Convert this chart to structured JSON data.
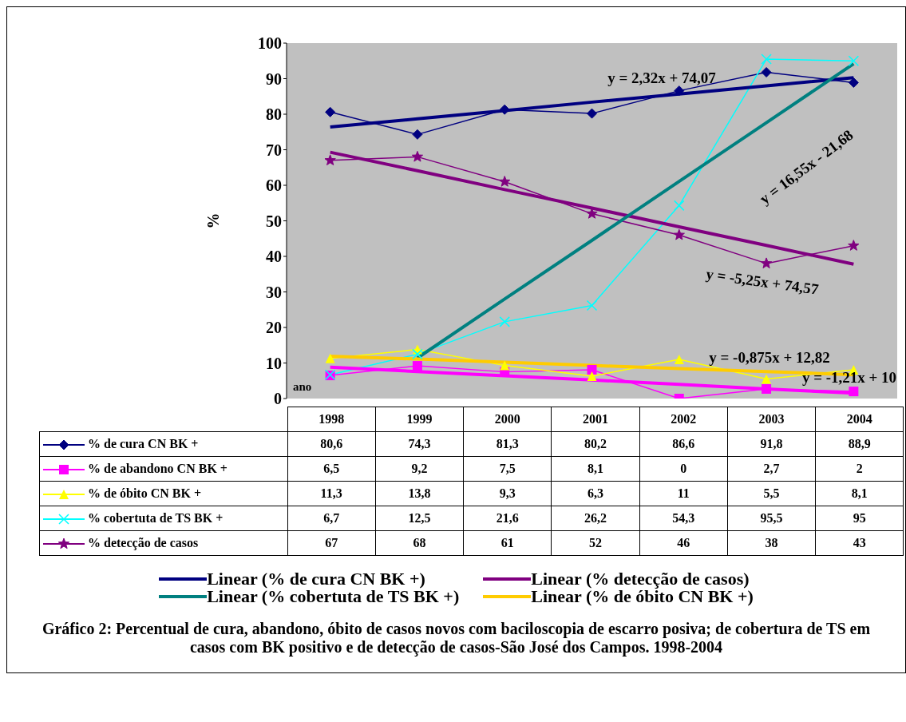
{
  "chart_data": {
    "type": "line",
    "title": "Gráfico 2: Percentual de cura, abandono, óbito de casos novos com baciloscopia de escarro posiva; de cobertura de TS em casos com BK positivo e de detecção de casos-São José dos Campos. 1998-2004",
    "xlabel": "ano",
    "ylabel": "%",
    "categories": [
      "1998",
      "1999",
      "2000",
      "2001",
      "2002",
      "2003",
      "2004"
    ],
    "ylim": [
      0,
      100
    ],
    "yticks": [
      0,
      10,
      20,
      30,
      40,
      50,
      60,
      70,
      80,
      90,
      100
    ],
    "legend": "bottom",
    "series": [
      {
        "name": "% de cura CN BK +",
        "color": "#000080",
        "marker": "diamond",
        "values": [
          80.6,
          74.3,
          81.3,
          80.2,
          86.6,
          91.8,
          88.9
        ],
        "value_labels": [
          "80,6",
          "74,3",
          "81,3",
          "80,2",
          "86,6",
          "91,8",
          "88,9"
        ]
      },
      {
        "name": "% de abandono CN BK +",
        "color": "#ff00ff",
        "marker": "square",
        "values": [
          6.5,
          9.2,
          7.5,
          8.1,
          0,
          2.7,
          2
        ],
        "value_labels": [
          "6,5",
          "9,2",
          "7,5",
          "8,1",
          "0",
          "2,7",
          "2"
        ]
      },
      {
        "name": "% de óbito CN BK +",
        "color": "#ffff00",
        "marker": "triangle",
        "values": [
          11.3,
          13.8,
          9.3,
          6.3,
          11,
          5.5,
          8.1
        ],
        "value_labels": [
          "11,3",
          "13,8",
          "9,3",
          "6,3",
          "11",
          "5,5",
          "8,1"
        ]
      },
      {
        "name": "% cobertuta de TS BK +",
        "color": "#00ffff",
        "marker": "cross",
        "values": [
          6.7,
          12.5,
          21.6,
          26.2,
          54.3,
          95.5,
          95
        ],
        "value_labels": [
          "6,7",
          "12,5",
          "21,6",
          "26,2",
          "54,3",
          "95,5",
          "95"
        ]
      },
      {
        "name": "% detecção de casos",
        "color": "#800080",
        "marker": "star",
        "values": [
          67,
          68,
          61,
          52,
          46,
          38,
          43
        ],
        "value_labels": [
          "67",
          "68",
          "61",
          "52",
          "46",
          "38",
          "43"
        ]
      },
      {
        "name": "Linear (% de cura CN BK +)",
        "color": "#000080",
        "marker": "none",
        "values": [
          76.4,
          78.7,
          81.0,
          83.4,
          85.7,
          88.0,
          90.3
        ]
      },
      {
        "name": "Linear (% detecção de casos)",
        "color": "#800080",
        "marker": "none",
        "values": [
          69.3,
          64.1,
          58.8,
          53.6,
          48.3,
          43.1,
          37.8
        ]
      },
      {
        "name": "Linear (% cobertuta de TS BK +)",
        "color": "#008080",
        "marker": "none",
        "values": [
          null,
          11.4,
          28.0,
          44.5,
          61.1,
          77.6,
          94.2
        ]
      },
      {
        "name": "Linear (% de óbito CN BK +)",
        "color": "#ffcc00",
        "marker": "none",
        "values": [
          11.9,
          11.1,
          10.2,
          9.3,
          8.4,
          7.6,
          6.7
        ]
      },
      {
        "color": "#ff00ff",
        "marker": "none",
        "values": [
          8.8,
          7.6,
          6.4,
          5.2,
          4.0,
          2.7,
          1.5
        ]
      }
    ],
    "annotations": [
      "y = 2,32x + 74,07",
      "y = 16,55x - 21,68",
      "y = -5,25x + 74,57",
      "y = -0,875x + 12,82",
      "y = -1,21x + 10"
    ]
  }
}
